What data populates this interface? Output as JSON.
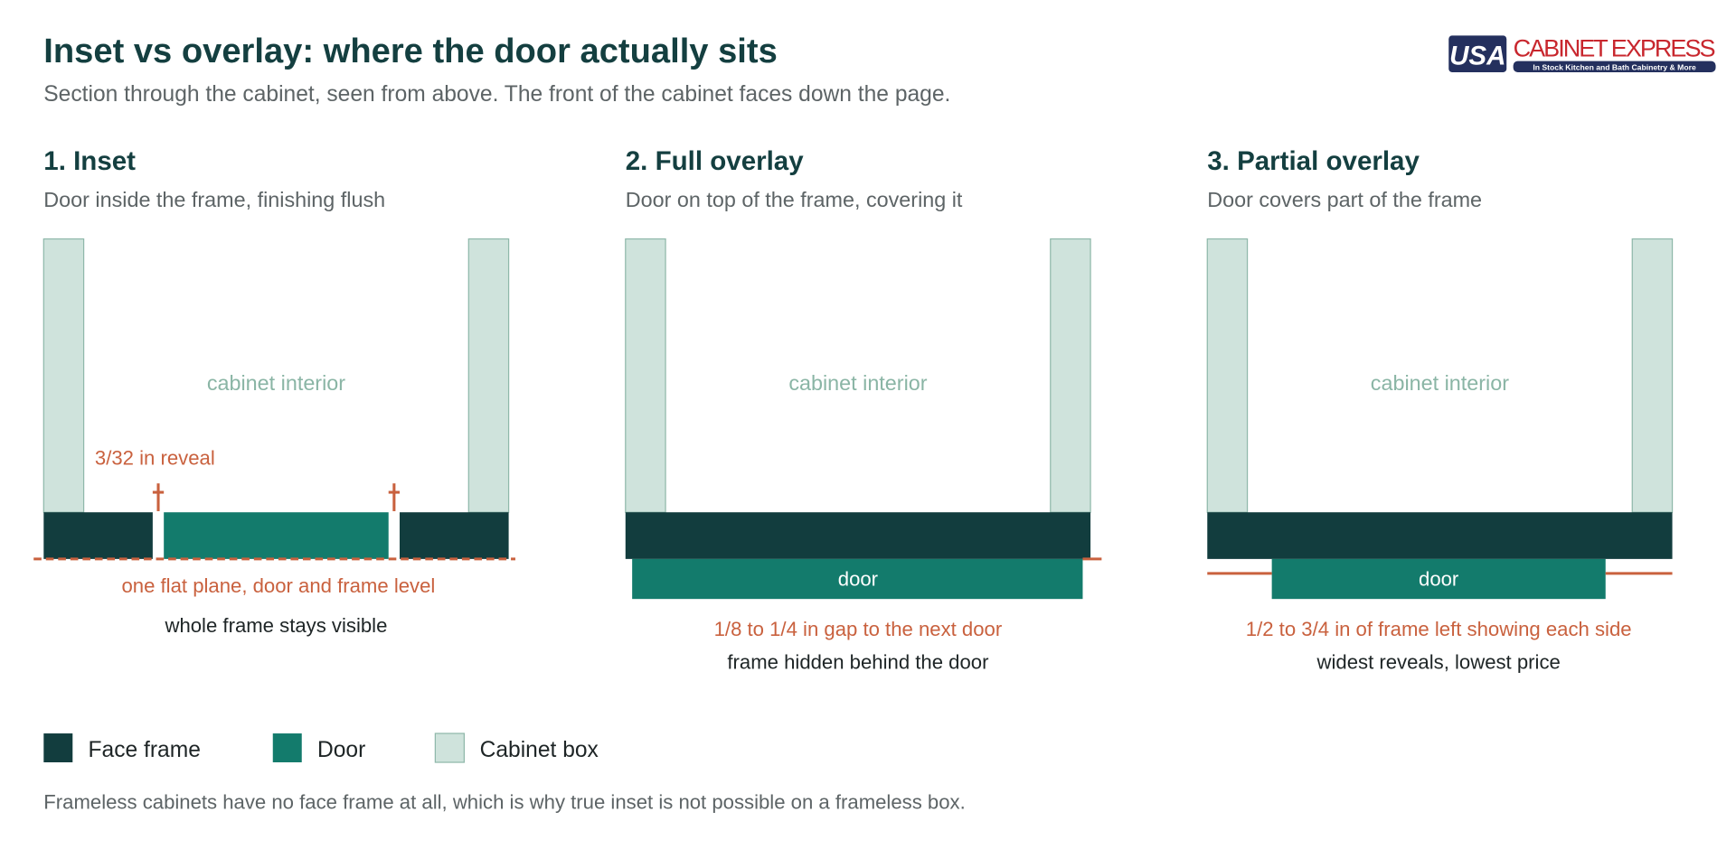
{
  "header": {
    "title": "Inset vs overlay: where the door actually sits",
    "subtitle": "Section through the cabinet, seen from above. The front of the cabinet faces down the page."
  },
  "logo": {
    "mark": "USA",
    "name": "CABINET EXPRESS",
    "tagline": "In Stock Kitchen and Bath Cabinetry & More"
  },
  "panels": [
    {
      "title": "1. Inset",
      "subtitle": "Door inside the frame, finishing flush",
      "interior_label": "cabinet interior",
      "reveal_label": "3/32 in reveal",
      "note": "one flat plane, door and frame level",
      "caption": "whole frame stays visible"
    },
    {
      "title": "2. Full overlay",
      "subtitle": "Door on top of the frame, covering it",
      "interior_label": "cabinet interior",
      "door_label": "door",
      "note": "1/8 to 1/4 in gap to the next door",
      "caption": "frame hidden behind the door"
    },
    {
      "title": "3. Partial overlay",
      "subtitle": "Door covers part of the frame",
      "interior_label": "cabinet interior",
      "door_label": "door",
      "note": "1/2 to 3/4 in of frame left showing each side",
      "caption": "widest reveals, lowest price"
    }
  ],
  "legend": [
    "Face frame",
    "Door",
    "Cabinet box"
  ],
  "footnote": "Frameless cabinets have no face frame at all, which is why true inset is not possible on a frameless box."
}
